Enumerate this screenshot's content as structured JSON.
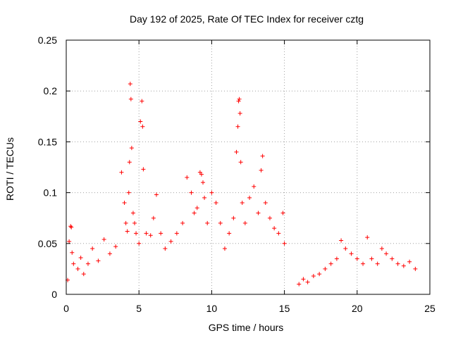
{
  "chart_data": {
    "type": "scatter",
    "title": "Day 192 of 2025, Rate Of TEC Index for receiver cztg",
    "xlabel": "GPS time / hours",
    "ylabel": "ROTI / TECUs",
    "xlim": [
      0,
      25
    ],
    "ylim": [
      0,
      0.25
    ],
    "xticks": [
      "0",
      "5",
      "10",
      "15",
      "20",
      "25"
    ],
    "yticks": [
      "0",
      "0.05",
      "0.1",
      "0.15",
      "0.2",
      "0.25"
    ],
    "grid": true,
    "marker": "+",
    "color": "#ff0000",
    "data_gap_hours": [
      15.1,
      15.9
    ],
    "series": [
      {
        "x": [
          0.1,
          0.2,
          0.3,
          0.35,
          0.4,
          0.5,
          0.8,
          1.0,
          1.2,
          1.5,
          1.8,
          2.2,
          2.6,
          3.0,
          3.4,
          3.8,
          4.0,
          4.1,
          4.2,
          4.3,
          4.35,
          4.4,
          4.45,
          4.5,
          4.6,
          4.7,
          4.8,
          5.0,
          5.1,
          5.2,
          5.25,
          5.3,
          5.5,
          5.8,
          6.0,
          6.2,
          6.5,
          6.8,
          7.2,
          7.6,
          8.0,
          8.3,
          8.6,
          8.8,
          9.0,
          9.2,
          9.3,
          9.4,
          9.5,
          9.7,
          10.0,
          10.3,
          10.6,
          10.9,
          11.2,
          11.5,
          11.7,
          11.8,
          11.85,
          11.9,
          11.95,
          12.0,
          12.1,
          12.3,
          12.6,
          12.9,
          13.2,
          13.4,
          13.5,
          13.7,
          14.0,
          14.3,
          14.6,
          14.9,
          15.0,
          16.0,
          16.3,
          16.6,
          17.0,
          17.4,
          17.8,
          18.2,
          18.6,
          18.9,
          19.2,
          19.6,
          20.0,
          20.4,
          20.7,
          21.0,
          21.4,
          21.7,
          22.0,
          22.4,
          22.8,
          23.2,
          23.6,
          24.0
        ],
        "y": [
          0.014,
          0.052,
          0.067,
          0.066,
          0.041,
          0.03,
          0.025,
          0.036,
          0.02,
          0.03,
          0.045,
          0.033,
          0.054,
          0.04,
          0.047,
          0.12,
          0.09,
          0.07,
          0.062,
          0.1,
          0.13,
          0.207,
          0.192,
          0.144,
          0.08,
          0.07,
          0.06,
          0.05,
          0.17,
          0.19,
          0.165,
          0.123,
          0.06,
          0.058,
          0.075,
          0.098,
          0.06,
          0.045,
          0.052,
          0.06,
          0.07,
          0.115,
          0.1,
          0.08,
          0.085,
          0.12,
          0.118,
          0.11,
          0.095,
          0.07,
          0.1,
          0.09,
          0.07,
          0.045,
          0.06,
          0.075,
          0.14,
          0.165,
          0.19,
          0.192,
          0.178,
          0.13,
          0.09,
          0.07,
          0.095,
          0.106,
          0.08,
          0.122,
          0.136,
          0.09,
          0.075,
          0.065,
          0.06,
          0.08,
          0.05,
          0.01,
          0.015,
          0.012,
          0.018,
          0.02,
          0.025,
          0.03,
          0.035,
          0.053,
          0.045,
          0.04,
          0.035,
          0.03,
          0.056,
          0.035,
          0.03,
          0.045,
          0.04,
          0.035,
          0.03,
          0.028,
          0.032,
          0.025
        ]
      }
    ]
  }
}
